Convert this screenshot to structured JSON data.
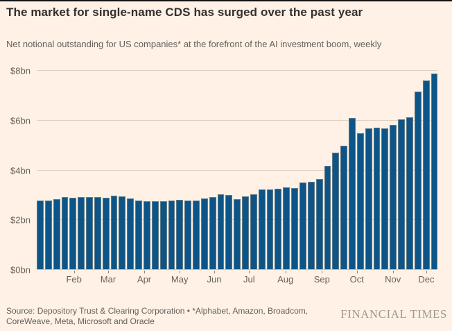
{
  "header": {
    "title": "The market for single-name CDS has surged over the past year",
    "subtitle": "Net notional outstanding for US companies* at the forefront of the AI investment boom, weekly"
  },
  "chart_data": {
    "type": "bar",
    "title": "The market for single-name CDS has surged over the past year",
    "subtitle": "Net notional outstanding for US companies* at the forefront of the AI investment boom, weekly",
    "unit": "USD billions",
    "frequency": "weekly",
    "ylim": [
      0,
      8
    ],
    "grid": true,
    "legend": "none",
    "values": [
      2.78,
      2.76,
      2.82,
      2.91,
      2.89,
      2.9,
      2.92,
      2.92,
      2.87,
      2.97,
      2.94,
      2.85,
      2.78,
      2.75,
      2.74,
      2.75,
      2.78,
      2.8,
      2.78,
      2.76,
      2.86,
      2.9,
      3.02,
      2.98,
      2.82,
      2.95,
      3.01,
      3.22,
      3.23,
      3.25,
      3.3,
      3.27,
      3.51,
      3.53,
      3.64,
      4.16,
      4.71,
      4.97,
      6.09,
      5.47,
      5.68,
      5.7,
      5.67,
      5.81,
      6.04,
      6.12,
      7.17,
      7.6,
      7.89
    ],
    "yticks": [
      {
        "label": "$0bn",
        "value": 0
      },
      {
        "label": "$2bn",
        "value": 2
      },
      {
        "label": "$4bn",
        "value": 4
      },
      {
        "label": "$6bn",
        "value": 6
      },
      {
        "label": "$8bn",
        "value": 8
      }
    ],
    "x_months": [
      {
        "label": "Feb",
        "pct": 9.29
      },
      {
        "label": "Mar",
        "pct": 17.82
      },
      {
        "label": "Apr",
        "pct": 26.82
      },
      {
        "label": "May",
        "pct": 35.67
      },
      {
        "label": "Jun",
        "pct": 44.29
      },
      {
        "label": "Jul",
        "pct": 53.0
      },
      {
        "label": "Aug",
        "pct": 62.06
      },
      {
        "label": "Sep",
        "pct": 71.16
      },
      {
        "label": "Oct",
        "pct": 79.88
      },
      {
        "label": "Nov",
        "pct": 88.88
      },
      {
        "label": "Dec",
        "pct": 97.23
      }
    ],
    "colors": {
      "background": "#fff1e5",
      "bar": "#0d5588",
      "gridline": "#ddd1c2",
      "text_primary": "#33302e",
      "text_secondary": "#66605c",
      "brand": "#a0988c"
    }
  },
  "footer": {
    "source": "Source: Depository Trust & Clearing Corporation • *Alphabet, Amazon, Broadcom, CoreWeave, Meta, Microsoft and Oracle",
    "brand": "FINANCIAL TIMES"
  }
}
